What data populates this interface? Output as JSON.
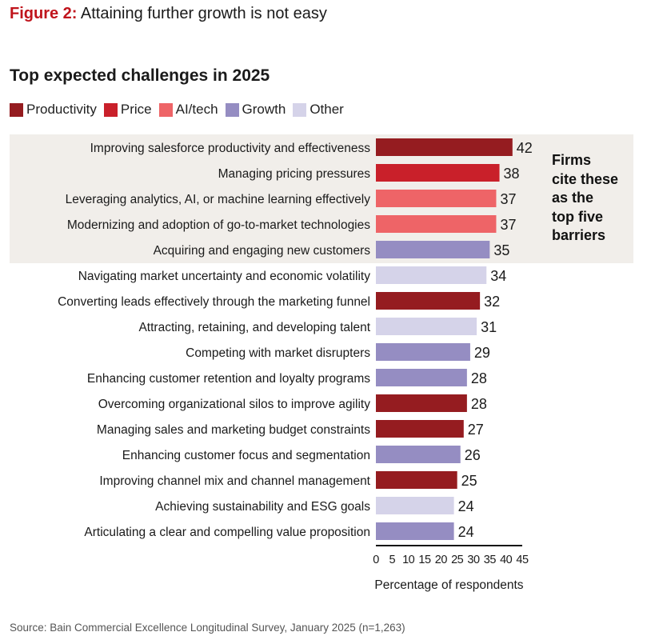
{
  "figure": {
    "label": "Figure 2:",
    "title": "Attaining further growth is not easy"
  },
  "callout": {
    "lines": [
      "Firms",
      "cite these",
      "as the",
      "top five",
      "barriers"
    ]
  },
  "source": "Source: Bain Commercial Excellence Longitudinal Survey, January 2025 (n=1,263)",
  "chart_data": {
    "type": "bar",
    "orientation": "horizontal",
    "title": "Top expected challenges in 2025",
    "xlabel": "Percentage of respondents",
    "ylabel": "",
    "xlim": [
      0,
      45
    ],
    "xticks": [
      0,
      5,
      10,
      15,
      20,
      25,
      30,
      35,
      40,
      45
    ],
    "grid": false,
    "legend_placement": "top-left",
    "legend": [
      {
        "name": "Productivity",
        "color": "#951c20"
      },
      {
        "name": "Price",
        "color": "#c9202a"
      },
      {
        "name": "AI/tech",
        "color": "#ee6467"
      },
      {
        "name": "Growth",
        "color": "#958dc2"
      },
      {
        "name": "Other",
        "color": "#d5d3e9"
      }
    ],
    "highlighted_top_n": 5,
    "categories": [
      "Improving salesforce productivity and effectiveness",
      "Managing pricing pressures",
      "Leveraging analytics, AI, or machine learning effectively",
      "Modernizing and adoption of go-to-market technologies",
      "Acquiring and engaging new customers",
      "Navigating market uncertainty and economic volatility",
      "Converting leads effectively through the marketing funnel",
      "Attracting, retaining, and developing talent",
      "Competing with market disrupters",
      "Enhancing customer retention and loyalty programs",
      "Overcoming organizational silos to improve agility",
      "Managing sales and marketing budget constraints",
      "Enhancing customer focus and segmentation",
      "Improving channel mix and channel management",
      "Achieving sustainability and ESG goals",
      "Articulating a clear and compelling value proposition"
    ],
    "values": [
      42,
      38,
      37,
      37,
      35,
      34,
      32,
      31,
      29,
      28,
      28,
      27,
      26,
      25,
      24,
      24
    ],
    "groups": [
      "Productivity",
      "Price",
      "AI/tech",
      "AI/tech",
      "Growth",
      "Other",
      "Productivity",
      "Other",
      "Growth",
      "Growth",
      "Productivity",
      "Productivity",
      "Growth",
      "Productivity",
      "Other",
      "Growth"
    ]
  }
}
